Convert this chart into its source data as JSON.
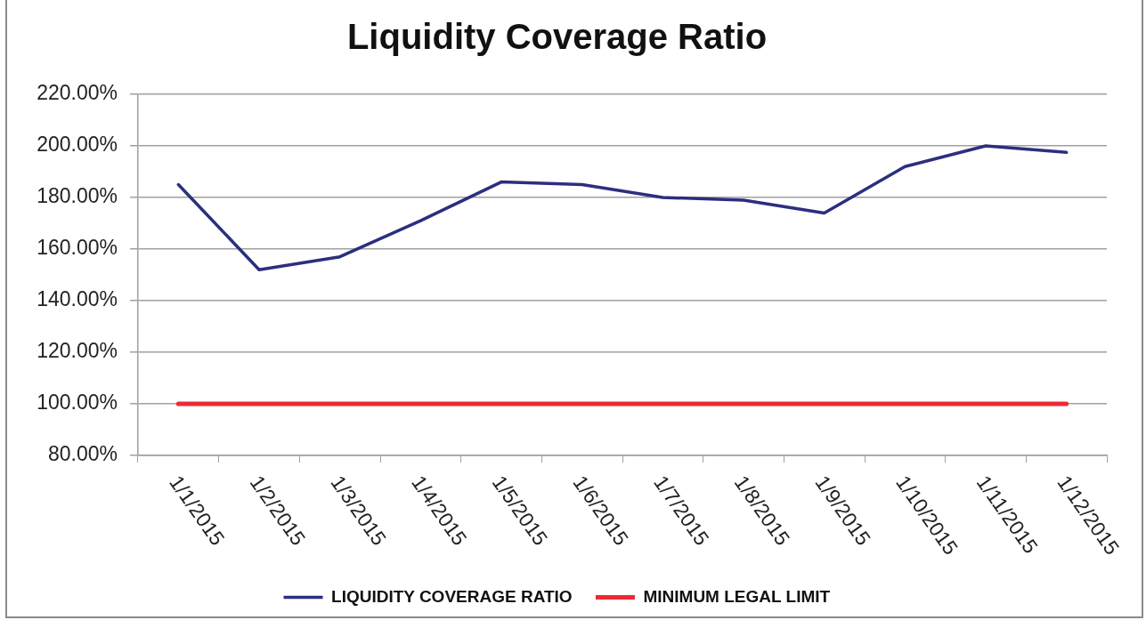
{
  "chart_data": {
    "type": "line",
    "title": "Liquidity Coverage Ratio",
    "categories": [
      "1/1/2015",
      "1/2/2015",
      "1/3/2015",
      "1/4/2015",
      "1/5/2015",
      "1/6/2015",
      "1/7/2015",
      "1/8/2015",
      "1/9/2015",
      "1/10/2015",
      "1/11/2015",
      "1/12/2015"
    ],
    "series": [
      {
        "name": "LIQUIDITY COVERAGE RATIO",
        "color": "#2b2f7f",
        "values": [
          185,
          152,
          157,
          171,
          186,
          185,
          180,
          179,
          174,
          192,
          200,
          197.5
        ]
      },
      {
        "name": "MINIMUM LEGAL LIMIT",
        "color": "#ec2a35",
        "values": [
          100,
          100,
          100,
          100,
          100,
          100,
          100,
          100,
          100,
          100,
          100,
          100
        ]
      }
    ],
    "ylim": [
      80,
      220
    ],
    "yticks": [
      {
        "value": 80,
        "label": "80.00%"
      },
      {
        "value": 100,
        "label": "100.00%"
      },
      {
        "value": 120,
        "label": "120.00%"
      },
      {
        "value": 140,
        "label": "140.00%"
      },
      {
        "value": 160,
        "label": "160.00%"
      },
      {
        "value": 180,
        "label": "180.00%"
      },
      {
        "value": 200,
        "label": "200.00%"
      },
      {
        "value": 220,
        "label": "220.00%"
      }
    ],
    "grid": "y",
    "legend": "bottom",
    "marker": "none"
  }
}
